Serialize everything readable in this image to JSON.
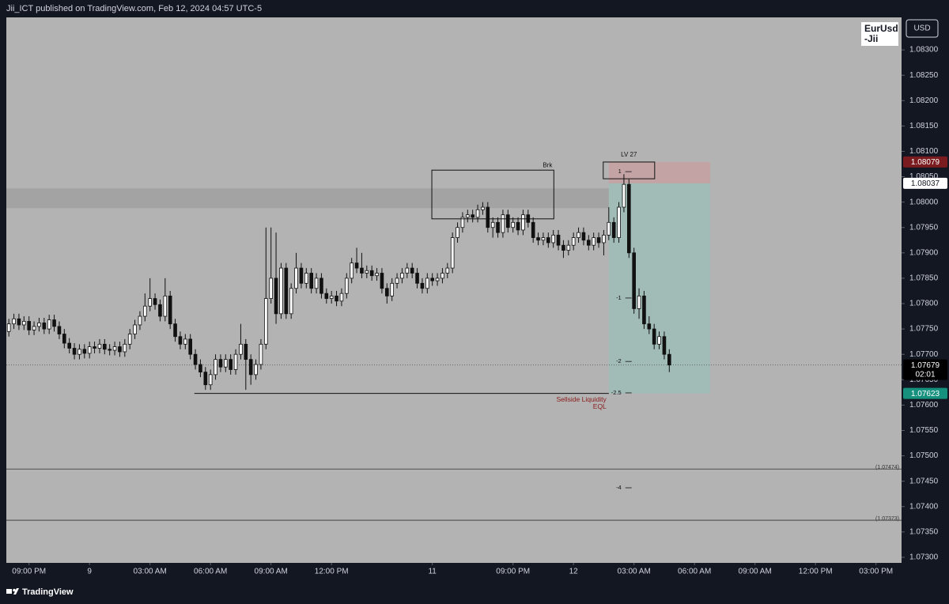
{
  "header": {
    "text": "Jii_ICT published on TradingView.com, Feb 12, 2024 04:57 UTC-5"
  },
  "chart_data": {
    "type": "candlestick",
    "symbol_label": [
      "EurUsd",
      "-Jii"
    ],
    "currency": "USD",
    "colors": {
      "up": "#ffffff",
      "down": "#111111",
      "outline": "#111111"
    },
    "xlim": [
      -0.5,
      177.07
    ],
    "xticks": [
      {
        "value": 4,
        "label": "09:00 PM"
      },
      {
        "value": 16,
        "label": "9"
      },
      {
        "value": 28,
        "label": "03:00 AM"
      },
      {
        "value": 40,
        "label": "06:00 AM"
      },
      {
        "value": 52,
        "label": "09:00 AM"
      },
      {
        "value": 64,
        "label": "12:00 PM"
      },
      {
        "value": 84,
        "label": "11"
      },
      {
        "value": 100,
        "label": "09:00 PM"
      },
      {
        "value": 112,
        "label": "12"
      },
      {
        "value": 124,
        "label": "03:00 AM"
      },
      {
        "value": 136,
        "label": "06:00 AM"
      },
      {
        "value": 148,
        "label": "09:00 AM"
      },
      {
        "value": 160,
        "label": "12:00 PM"
      },
      {
        "value": 172,
        "label": "03:00 PM"
      }
    ],
    "ylim": [
      1.07289,
      1.08364
    ],
    "yticks": [
      {
        "value": 1.083,
        "label": "1.08300"
      },
      {
        "value": 1.0825,
        "label": "1.08250"
      },
      {
        "value": 1.082,
        "label": "1.08200"
      },
      {
        "value": 1.0815,
        "label": "1.08150"
      },
      {
        "value": 1.081,
        "label": "1.08100"
      },
      {
        "value": 1.0805,
        "label": "1.08050"
      },
      {
        "value": 1.08,
        "label": "1.08000"
      },
      {
        "value": 1.0795,
        "label": "1.07950"
      },
      {
        "value": 1.079,
        "label": "1.07900"
      },
      {
        "value": 1.0785,
        "label": "1.07850"
      },
      {
        "value": 1.078,
        "label": "1.07800"
      },
      {
        "value": 1.0775,
        "label": "1.07750"
      },
      {
        "value": 1.077,
        "label": "1.07700"
      },
      {
        "value": 1.0765,
        "label": "1.07650"
      },
      {
        "value": 1.076,
        "label": "1.07600"
      },
      {
        "value": 1.0755,
        "label": "1.07550"
      },
      {
        "value": 1.075,
        "label": "1.07500"
      },
      {
        "value": 1.0745,
        "label": "1.07450"
      },
      {
        "value": 1.074,
        "label": "1.07400"
      },
      {
        "value": 1.0735,
        "label": "1.07350"
      },
      {
        "value": 1.073,
        "label": "1.07300"
      }
    ],
    "candles": [
      [
        1.07745,
        1.0777,
        1.07735,
        1.0776
      ],
      [
        1.0776,
        1.0778,
        1.0775,
        1.0777
      ],
      [
        1.0777,
        1.0778,
        1.07748,
        1.07758
      ],
      [
        1.07758,
        1.07775,
        1.07748,
        1.07765
      ],
      [
        1.07765,
        1.07775,
        1.07738,
        1.07748
      ],
      [
        1.07748,
        1.07765,
        1.07738,
        1.07755
      ],
      [
        1.07755,
        1.07772,
        1.07745,
        1.07762
      ],
      [
        1.07762,
        1.07772,
        1.0774,
        1.0775
      ],
      [
        1.0775,
        1.07778,
        1.0774,
        1.07768
      ],
      [
        1.07768,
        1.07778,
        1.07745,
        1.07755
      ],
      [
        1.07755,
        1.07765,
        1.0773,
        1.0774
      ],
      [
        1.0774,
        1.0775,
        1.07712,
        1.07722
      ],
      [
        1.07722,
        1.07732,
        1.07702,
        1.07712
      ],
      [
        1.07712,
        1.07722,
        1.0769,
        1.077
      ],
      [
        1.077,
        1.0772,
        1.0769,
        1.0771
      ],
      [
        1.0771,
        1.0772,
        1.07692,
        1.07702
      ],
      [
        1.07702,
        1.07725,
        1.07692,
        1.07715
      ],
      [
        1.07715,
        1.07725,
        1.07702,
        1.07712
      ],
      [
        1.07712,
        1.0773,
        1.07702,
        1.0772
      ],
      [
        1.0772,
        1.0773,
        1.077,
        1.0771
      ],
      [
        1.0771,
        1.0772,
        1.07698,
        1.07708
      ],
      [
        1.07708,
        1.07725,
        1.07698,
        1.07715
      ],
      [
        1.07715,
        1.07725,
        1.07695,
        1.07705
      ],
      [
        1.07705,
        1.0773,
        1.07695,
        1.0772
      ],
      [
        1.0772,
        1.0775,
        1.0771,
        1.0774
      ],
      [
        1.0774,
        1.07768,
        1.0773,
        1.07758
      ],
      [
        1.07758,
        1.07785,
        1.07748,
        1.07775
      ],
      [
        1.07775,
        1.0782,
        1.07765,
        1.07795
      ],
      [
        1.07795,
        1.0785,
        1.07785,
        1.0781
      ],
      [
        1.0781,
        1.0782,
        1.07788,
        1.07798
      ],
      [
        1.07798,
        1.07808,
        1.07765,
        1.07775
      ],
      [
        1.07775,
        1.0785,
        1.07765,
        1.07815
      ],
      [
        1.07815,
        1.07825,
        1.0775,
        1.0776
      ],
      [
        1.0776,
        1.0777,
        1.07725,
        1.07735
      ],
      [
        1.07735,
        1.07745,
        1.0771,
        1.0772
      ],
      [
        1.0772,
        1.0774,
        1.0771,
        1.0773
      ],
      [
        1.0773,
        1.0774,
        1.0769,
        1.077
      ],
      [
        1.077,
        1.0771,
        1.0767,
        1.0768
      ],
      [
        1.0768,
        1.0769,
        1.07655,
        1.07665
      ],
      [
        1.07665,
        1.07675,
        1.0763,
        1.0764
      ],
      [
        1.0764,
        1.0767,
        1.0763,
        1.0766
      ],
      [
        1.0766,
        1.077,
        1.0765,
        1.0769
      ],
      [
        1.0769,
        1.077,
        1.07665,
        1.07675
      ],
      [
        1.07675,
        1.077,
        1.07665,
        1.0769
      ],
      [
        1.0769,
        1.077,
        1.0766,
        1.0767
      ],
      [
        1.0767,
        1.0771,
        1.0766,
        1.077
      ],
      [
        1.077,
        1.0776,
        1.0769,
        1.0772
      ],
      [
        1.0772,
        1.0773,
        1.0763,
        1.0769
      ],
      [
        1.0769,
        1.077,
        1.0764,
        1.0766
      ],
      [
        1.0766,
        1.0769,
        1.0765,
        1.0768
      ],
      [
        1.0768,
        1.0773,
        1.0767,
        1.0772
      ],
      [
        1.0772,
        1.0795,
        1.0771,
        1.0781
      ],
      [
        1.0781,
        1.0795,
        1.078,
        1.0785
      ],
      [
        1.0785,
        1.0794,
        1.0776,
        1.0778
      ],
      [
        1.0778,
        1.0788,
        1.0777,
        1.0787
      ],
      [
        1.0787,
        1.0788,
        1.0777,
        1.0778
      ],
      [
        1.0778,
        1.0784,
        1.0777,
        1.0783
      ],
      [
        1.0783,
        1.079,
        1.0782,
        1.0787
      ],
      [
        1.0787,
        1.0788,
        1.0783,
        1.0784
      ],
      [
        1.0784,
        1.0787,
        1.0783,
        1.0786
      ],
      [
        1.0786,
        1.0787,
        1.0782,
        1.0783
      ],
      [
        1.0783,
        1.0786,
        1.0782,
        1.0785
      ],
      [
        1.0785,
        1.0786,
        1.0781,
        1.0782
      ],
      [
        1.0782,
        1.0783,
        1.078,
        1.0781
      ],
      [
        1.0781,
        1.07825,
        1.078,
        1.07815
      ],
      [
        1.07815,
        1.07825,
        1.07795,
        1.07805
      ],
      [
        1.07805,
        1.0783,
        1.07795,
        1.0782
      ],
      [
        1.0782,
        1.0786,
        1.0781,
        1.0785
      ],
      [
        1.0785,
        1.0789,
        1.0784,
        1.0788
      ],
      [
        1.0788,
        1.0791,
        1.0786,
        1.0787
      ],
      [
        1.0787,
        1.079,
        1.0785,
        1.0786
      ],
      [
        1.0786,
        1.07875,
        1.0785,
        1.07865
      ],
      [
        1.07865,
        1.07875,
        1.07845,
        1.07855
      ],
      [
        1.07855,
        1.0787,
        1.07845,
        1.0786
      ],
      [
        1.0786,
        1.0787,
        1.0782,
        1.0783
      ],
      [
        1.0783,
        1.0784,
        1.078,
        1.07815
      ],
      [
        1.07815,
        1.0785,
        1.07805,
        1.0784
      ],
      [
        1.0784,
        1.0786,
        1.0783,
        1.0785
      ],
      [
        1.0785,
        1.0787,
        1.0784,
        1.0786
      ],
      [
        1.0786,
        1.0788,
        1.0785,
        1.0787
      ],
      [
        1.0787,
        1.0788,
        1.0785,
        1.0786
      ],
      [
        1.0786,
        1.0787,
        1.0783,
        1.0784
      ],
      [
        1.0784,
        1.0785,
        1.0782,
        1.0783
      ],
      [
        1.0783,
        1.0786,
        1.0782,
        1.0785
      ],
      [
        1.0785,
        1.0786,
        1.07835,
        1.07845
      ],
      [
        1.07845,
        1.0786,
        1.07835,
        1.0785
      ],
      [
        1.0785,
        1.0787,
        1.0784,
        1.0786
      ],
      [
        1.0786,
        1.0788,
        1.0785,
        1.0787
      ],
      [
        1.0787,
        1.0794,
        1.0786,
        1.0793
      ],
      [
        1.0793,
        1.0796,
        1.0792,
        1.0795
      ],
      [
        1.0795,
        1.0798,
        1.0794,
        1.0797
      ],
      [
        1.0797,
        1.07985,
        1.0796,
        1.07975
      ],
      [
        1.07975,
        1.07985,
        1.0796,
        1.0797
      ],
      [
        1.0797,
        1.07995,
        1.0796,
        1.07985
      ],
      [
        1.07985,
        1.08,
        1.07975,
        1.0799
      ],
      [
        1.0799,
        1.08,
        1.0794,
        1.0795
      ],
      [
        1.0795,
        1.0797,
        1.0793,
        1.0796
      ],
      [
        1.0796,
        1.0797,
        1.0793,
        1.0794
      ],
      [
        1.0794,
        1.07985,
        1.0793,
        1.07975
      ],
      [
        1.07975,
        1.07985,
        1.0794,
        1.0795
      ],
      [
        1.0795,
        1.0797,
        1.0794,
        1.0796
      ],
      [
        1.0796,
        1.0797,
        1.07935,
        1.07945
      ],
      [
        1.07945,
        1.07985,
        1.07935,
        1.07975
      ],
      [
        1.07975,
        1.07985,
        1.0795,
        1.0796
      ],
      [
        1.0796,
        1.0797,
        1.0792,
        1.0793
      ],
      [
        1.0793,
        1.0794,
        1.07915,
        1.07925
      ],
      [
        1.07925,
        1.0794,
        1.07915,
        1.0793
      ],
      [
        1.0793,
        1.0794,
        1.0791,
        1.0792
      ],
      [
        1.0792,
        1.07945,
        1.0791,
        1.07935
      ],
      [
        1.07935,
        1.07945,
        1.07905,
        1.07915
      ],
      [
        1.07915,
        1.07925,
        1.0789,
        1.07905
      ],
      [
        1.07905,
        1.07925,
        1.07895,
        1.07915
      ],
      [
        1.07915,
        1.0794,
        1.07905,
        1.0793
      ],
      [
        1.0793,
        1.0795,
        1.0792,
        1.0794
      ],
      [
        1.0794,
        1.0795,
        1.07915,
        1.07925
      ],
      [
        1.07925,
        1.07935,
        1.07905,
        1.07915
      ],
      [
        1.07915,
        1.0794,
        1.07905,
        1.0793
      ],
      [
        1.0793,
        1.0794,
        1.0791,
        1.0792
      ],
      [
        1.0792,
        1.07945,
        1.07895,
        1.07935
      ],
      [
        1.07935,
        1.0799,
        1.07925,
        1.0796
      ],
      [
        1.0796,
        1.0797,
        1.0792,
        1.0793
      ],
      [
        1.0793,
        1.08,
        1.0792,
        1.0799
      ],
      [
        1.0799,
        1.08055,
        1.0798,
        1.08035
      ],
      [
        1.08035,
        1.08045,
        1.0789,
        1.079
      ],
      [
        1.079,
        1.0791,
        1.0778,
        1.0779
      ],
      [
        1.0779,
        1.0783,
        1.0777,
        1.07815
      ],
      [
        1.07815,
        1.07825,
        1.0775,
        1.0776
      ],
      [
        1.0776,
        1.07775,
        1.0774,
        1.0775
      ],
      [
        1.0775,
        1.0776,
        1.0771,
        1.0772
      ],
      [
        1.0772,
        1.07745,
        1.0771,
        1.07735
      ],
      [
        1.07735,
        1.07745,
        1.0769,
        1.077
      ],
      [
        1.077,
        1.0771,
        1.07665,
        1.07679
      ]
    ],
    "zones": [
      {
        "x": [
          -0.5,
          136.5
        ],
        "y": [
          1.07988,
          1.08027
        ],
        "color": "#a3a3a3"
      },
      {
        "x": [
          119,
          139.1
        ],
        "y": [
          1.08037,
          1.08079
        ],
        "color": "#c4a3a4"
      },
      {
        "x": [
          119,
          139.1
        ],
        "y": [
          1.07623,
          1.08037
        ],
        "color": "#a1bbb6"
      }
    ],
    "boxes": [
      {
        "x": [
          83.9,
          108.1
        ],
        "y": [
          1.07967,
          1.08063
        ],
        "label": "Brk"
      },
      {
        "x": [
          117.9,
          128.1
        ],
        "y": [
          1.08046,
          1.08079
        ],
        "label": "LV 27"
      }
    ],
    "sellside": {
      "x": [
        36.8,
        119
      ],
      "value": 1.07623,
      "labels": [
        "Sellside Liquidity",
        "EQL"
      ],
      "color": "#8b1a1a"
    },
    "levels": [
      {
        "value": 1.07474,
        "label": "(1.07474)"
      },
      {
        "value": 1.07373,
        "label": "(1.07373)"
      }
    ],
    "fib_x": 121.5,
    "fib_levels": [
      {
        "ratio": 1,
        "value": 1.0806
      },
      {
        "ratio": -1,
        "value": 1.07811
      },
      {
        "ratio": -2,
        "value": 1.07686
      },
      {
        "ratio": -2.5,
        "value": 1.07624
      },
      {
        "ratio": -4,
        "value": 1.07437
      }
    ],
    "price_tags": [
      {
        "value": 1.08079,
        "color": "#7a1b20",
        "text_color": "#ffffff"
      },
      {
        "value": 1.08037,
        "color": "#ffffff",
        "text_color": "#131722"
      },
      {
        "value": 1.07623,
        "color": "#16917e",
        "text_color": "#ffffff"
      }
    ],
    "countdown": "02:01"
  },
  "footer": {
    "brand": "TradingView"
  }
}
